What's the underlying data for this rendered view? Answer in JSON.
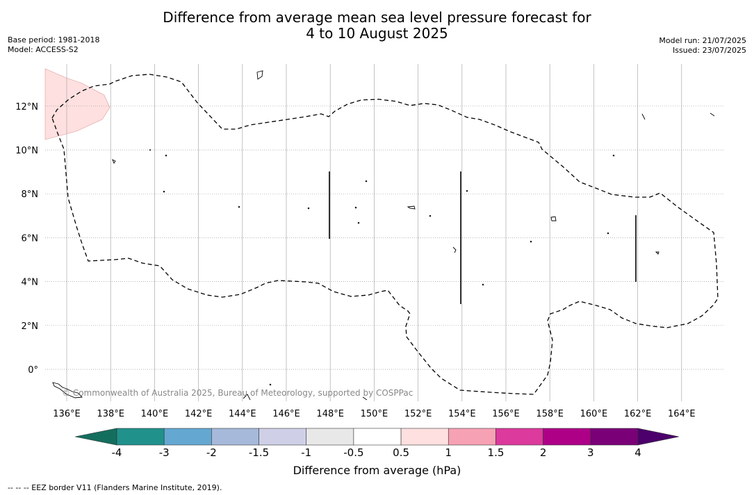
{
  "title_line1": "Difference from average mean sea level pressure forecast for",
  "title_line2": "4 to 10 August 2025",
  "base_period": "Base period: 1981-2018",
  "model": "Model: ACCESS-S2",
  "model_run": "Model run: 21/07/2025",
  "issued": "Issued: 23/07/2025",
  "copyright": "© Commonwealth of Australia 2025, Bureau of Meteorology, supported by COSPPac",
  "map": {
    "lon_range": [
      135,
      166
    ],
    "lat_range": [
      -1.5,
      14
    ],
    "lon_ticks": [
      "136°E",
      "138°E",
      "140°E",
      "142°E",
      "144°E",
      "146°E",
      "148°E",
      "150°E",
      "152°E",
      "154°E",
      "156°E",
      "158°E",
      "160°E",
      "162°E",
      "164°E"
    ],
    "lat_ticks": [
      "0°",
      "2°N",
      "4°N",
      "6°N",
      "8°N",
      "10°N",
      "12°N"
    ],
    "grid": true
  },
  "colorbar": {
    "title": "Difference from average (hPa)",
    "labels": [
      "-4",
      "-3",
      "-2",
      "-1.5",
      "-1",
      "-0.5",
      "0.5",
      "1",
      "1.5",
      "2",
      "3",
      "4"
    ],
    "colors": [
      "#146e5e",
      "#21918c",
      "#64a8d2",
      "#a6b9da",
      "#cfd0e8",
      "#e8e8e8",
      "#ffffff",
      "#fde0df",
      "#f7a1b4",
      "#dc3a9c",
      "#ad0087",
      "#7a0077",
      "#4b006b"
    ]
  },
  "footnote": "-- -- -- EEZ border V11 (Flanders Marine Institute, 2019)."
}
